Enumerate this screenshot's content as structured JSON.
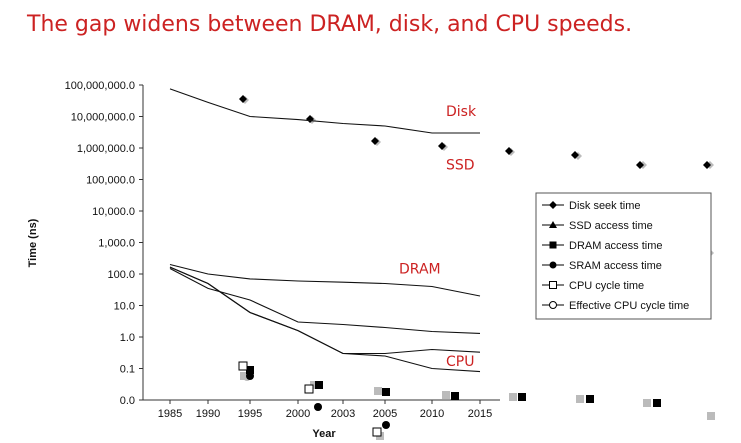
{
  "slide": {
    "title": "The gap widens between DRAM, disk, and CPU speeds."
  },
  "chart_data": {
    "type": "line",
    "title": "",
    "xlabel": "Year",
    "ylabel": "Time (ns)",
    "y_scale": "log",
    "ylim": [
      0.01,
      100000000
    ],
    "y_tick_labels": [
      "100,000,000.0",
      "10,000,000.0",
      "1,000,000.0",
      "100,000.0",
      "10,000.0",
      "1,000.0",
      "100.0",
      "10.0",
      "1.0",
      "0.1",
      "0.0"
    ],
    "y_tick_values": [
      100000000,
      10000000,
      1000000,
      100000,
      10000,
      1000,
      100,
      10,
      1,
      0.1,
      0.01
    ],
    "categories": [
      "1985",
      "1990",
      "1995",
      "2000",
      "2003",
      "2005",
      "2010",
      "2015"
    ],
    "grid": false,
    "legend_position": "right",
    "series": [
      {
        "name": "Disk seek time",
        "marker": "diamond",
        "values": [
          75000000,
          28000000,
          10000000,
          8000000,
          6000000,
          5000000,
          3000000,
          3000000
        ]
      },
      {
        "name": "SSD access time",
        "marker": "triangle",
        "values": [
          null,
          null,
          null,
          null,
          null,
          null,
          null,
          null
        ]
      },
      {
        "name": "DRAM access time",
        "marker": "square",
        "values": [
          200,
          100,
          70,
          60,
          55,
          50,
          40,
          20
        ]
      },
      {
        "name": "SRAM access time",
        "marker": "circle",
        "values": [
          150,
          35,
          15,
          3,
          2.5,
          2,
          1.5,
          1.3
        ]
      },
      {
        "name": "CPU cycle time",
        "marker": "open-square",
        "values": [
          166,
          50,
          6,
          1.6,
          0.3,
          0.3,
          0.4,
          0.33
        ]
      },
      {
        "name": "Effective CPU cycle time",
        "marker": "open-circle",
        "values": [
          166,
          50,
          6,
          1.6,
          0.3,
          0.25,
          0.1,
          0.08
        ]
      }
    ],
    "annotations": [
      {
        "text": "Disk",
        "category": "2010",
        "value": 15000000
      },
      {
        "text": "SSD",
        "category": "2010",
        "value": 300000
      },
      {
        "text": "DRAM",
        "category": "2005",
        "value": 150
      },
      {
        "text": "CPU",
        "category": "2010",
        "value": 0.17
      }
    ]
  },
  "colors": {
    "title": "#cc2222",
    "annotation": "#cc2222",
    "lines": "#111111",
    "ghost": "#bbbbbb"
  }
}
